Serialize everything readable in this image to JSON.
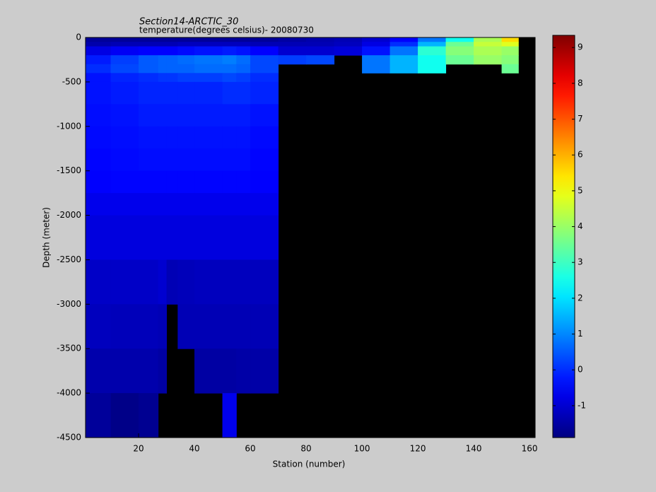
{
  "chart_data": {
    "type": "heatmap",
    "title": "Section14-ARCTIC_30",
    "subtitle": "temperature(degrees  celsius)- 20080730",
    "x_label": "Station (number)",
    "y_label": "Depth (meter)",
    "x_edges": [
      1,
      10,
      20,
      27,
      30,
      34,
      40,
      50,
      55,
      60,
      70,
      80,
      90,
      100,
      110,
      120,
      130,
      140,
      150,
      156,
      162
    ],
    "y_edges": [
      0,
      -50,
      -100,
      -200,
      -300,
      -400,
      -500,
      -750,
      -1000,
      -1250,
      -1500,
      -1750,
      -2000,
      -2500,
      -3000,
      -3500,
      -4000,
      -4500
    ],
    "z": [
      [
        -1.6,
        -1.6,
        -1.6,
        -1.6,
        -1.6,
        -1.6,
        -1.6,
        -1.6,
        -1.6,
        -1.6,
        -1.5,
        -1.4,
        -1.3,
        -1.0,
        -0.5,
        0.8,
        2.5,
        4.2,
        5.5,
        null
      ],
      [
        -1.4,
        -1.3,
        -1.3,
        -1.3,
        -1.3,
        -1.2,
        -1.2,
        -1.2,
        -1.2,
        -1.3,
        -1.3,
        -1.3,
        -1.2,
        -0.8,
        0.0,
        1.5,
        3.5,
        4.5,
        4.8,
        null
      ],
      [
        -0.8,
        -0.6,
        -0.5,
        -0.5,
        -0.5,
        -0.4,
        -0.3,
        -0.2,
        -0.3,
        -0.5,
        -1.0,
        -1.0,
        -0.9,
        -0.3,
        0.8,
        2.8,
        3.8,
        4.2,
        4.0,
        null
      ],
      [
        -0.2,
        0.2,
        0.5,
        0.6,
        0.6,
        0.7,
        0.8,
        0.9,
        0.7,
        0.3,
        0.2,
        0.3,
        null,
        0.8,
        1.5,
        2.5,
        3.5,
        4.0,
        3.8,
        null
      ],
      [
        0.0,
        0.3,
        0.5,
        0.6,
        0.6,
        0.6,
        0.7,
        0.7,
        0.6,
        0.3,
        null,
        null,
        null,
        0.8,
        1.5,
        2.5,
        null,
        null,
        3.5,
        null
      ],
      [
        -0.3,
        -0.1,
        0.0,
        0.1,
        0.1,
        0.2,
        0.2,
        0.3,
        0.2,
        0.0,
        null,
        null,
        null,
        null,
        null,
        null,
        null,
        null,
        null,
        null
      ],
      [
        -0.3,
        -0.2,
        -0.1,
        -0.1,
        -0.1,
        -0.1,
        -0.1,
        0.0,
        0.0,
        -0.1,
        null,
        null,
        null,
        null,
        null,
        null,
        null,
        null,
        null,
        null
      ],
      [
        -0.35,
        -0.3,
        -0.2,
        -0.2,
        -0.2,
        -0.2,
        -0.2,
        -0.2,
        -0.2,
        -0.3,
        null,
        null,
        null,
        null,
        null,
        null,
        null,
        null,
        null,
        null
      ],
      [
        -0.4,
        -0.35,
        -0.3,
        -0.3,
        -0.3,
        -0.3,
        -0.3,
        -0.3,
        -0.3,
        -0.4,
        null,
        null,
        null,
        null,
        null,
        null,
        null,
        null,
        null,
        null
      ],
      [
        -0.45,
        -0.4,
        -0.35,
        -0.35,
        -0.35,
        -0.35,
        -0.35,
        -0.35,
        -0.35,
        -0.45,
        null,
        null,
        null,
        null,
        null,
        null,
        null,
        null,
        null,
        null
      ],
      [
        -0.5,
        -0.45,
        -0.45,
        -0.45,
        -0.45,
        -0.45,
        -0.45,
        -0.45,
        -0.45,
        -0.5,
        null,
        null,
        null,
        null,
        null,
        null,
        null,
        null,
        null,
        null
      ],
      [
        -0.7,
        -0.7,
        -0.7,
        -0.7,
        -0.7,
        -0.7,
        -0.7,
        -0.7,
        -0.7,
        -0.7,
        null,
        null,
        null,
        null,
        null,
        null,
        null,
        null,
        null,
        null
      ],
      [
        -0.85,
        -0.85,
        -0.85,
        -0.85,
        -0.85,
        -0.85,
        -0.85,
        -0.85,
        -0.85,
        -0.85,
        null,
        null,
        null,
        null,
        null,
        null,
        null,
        null,
        null,
        null
      ],
      [
        -1.1,
        -1.1,
        -1.1,
        -1.0,
        -1.3,
        -1.25,
        -1.2,
        -1.2,
        -1.2,
        -1.2,
        null,
        null,
        null,
        null,
        null,
        null,
        null,
        null,
        null,
        null
      ],
      [
        -1.2,
        -1.25,
        -1.25,
        -1.3,
        null,
        -1.3,
        -1.3,
        -1.3,
        -1.3,
        -1.3,
        null,
        null,
        null,
        null,
        null,
        null,
        null,
        null,
        null,
        null
      ],
      [
        -1.4,
        -1.4,
        -1.4,
        -1.5,
        null,
        null,
        -1.5,
        -1.5,
        -1.45,
        -1.45,
        null,
        null,
        null,
        null,
        null,
        null,
        null,
        null,
        null,
        null
      ],
      [
        -1.6,
        -1.8,
        -1.7,
        null,
        null,
        null,
        null,
        -0.7,
        null,
        null,
        null,
        null,
        null,
        null,
        null,
        null,
        null,
        null,
        null,
        null
      ]
    ],
    "xlim": [
      1,
      162
    ],
    "xticks": [
      20,
      40,
      60,
      80,
      100,
      120,
      140,
      160
    ],
    "ylim": [
      -4500,
      0
    ],
    "yticks": [
      0,
      -500,
      -1000,
      -1500,
      -2000,
      -2500,
      -3000,
      -3500,
      -4000,
      -4500
    ],
    "clim": [
      -1.89,
      9.34
    ],
    "cticks": [
      -1,
      0,
      1,
      2,
      3,
      4,
      5,
      6,
      7,
      8,
      9
    ],
    "colormap": "jet",
    "nan_color": "#000000"
  }
}
